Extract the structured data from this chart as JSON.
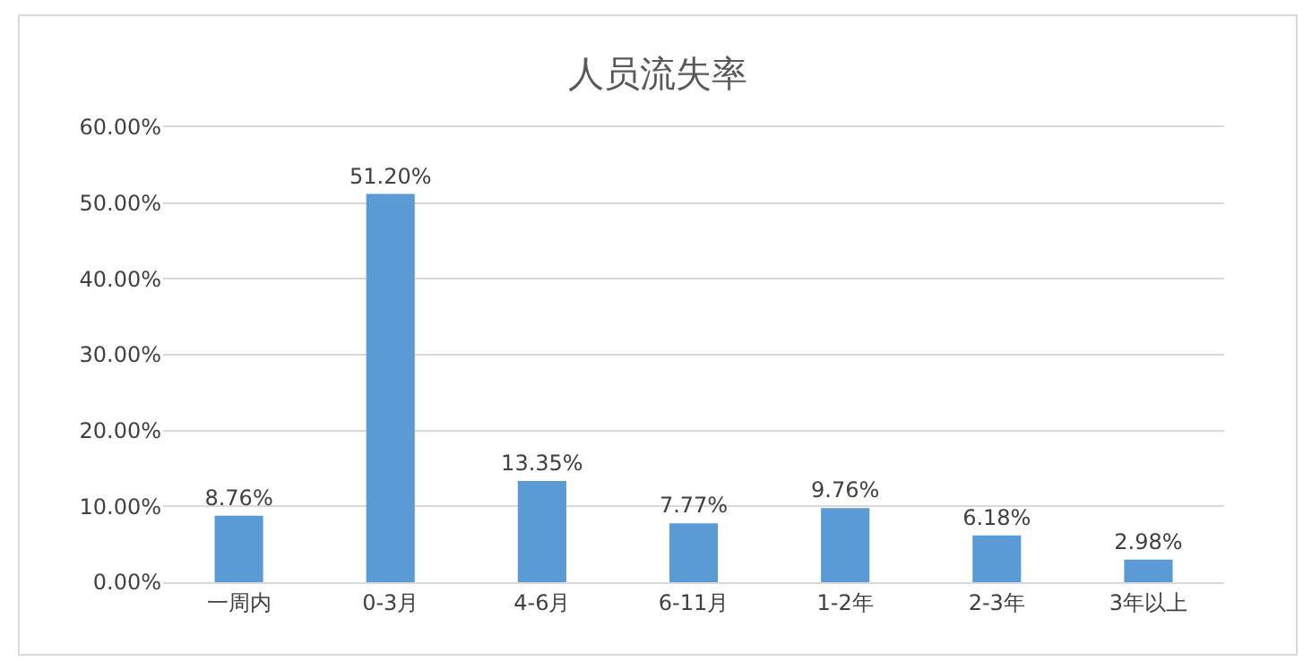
{
  "chart_data": {
    "type": "bar",
    "title": "人员流失率",
    "categories": [
      "一周内",
      "0-3月",
      "4-6月",
      "6-11月",
      "1-2年",
      "2-3年",
      "3年以上"
    ],
    "values": [
      8.76,
      51.2,
      13.35,
      7.77,
      9.76,
      6.18,
      2.98
    ],
    "value_labels": [
      "8.76%",
      "51.20%",
      "13.35%",
      "7.77%",
      "9.76%",
      "6.18%",
      "2.98%"
    ],
    "color": "#5b9bd5",
    "ylim": [
      0,
      60
    ],
    "yticks": [
      {
        "value": 0,
        "label": "0.00%"
      },
      {
        "value": 10,
        "label": "10.00%"
      },
      {
        "value": 20,
        "label": "20.00%"
      },
      {
        "value": 30,
        "label": "30.00%"
      },
      {
        "value": 40,
        "label": "40.00%"
      },
      {
        "value": 50,
        "label": "50.00%"
      },
      {
        "value": 60,
        "label": "60.00%"
      }
    ],
    "grid": "y"
  }
}
